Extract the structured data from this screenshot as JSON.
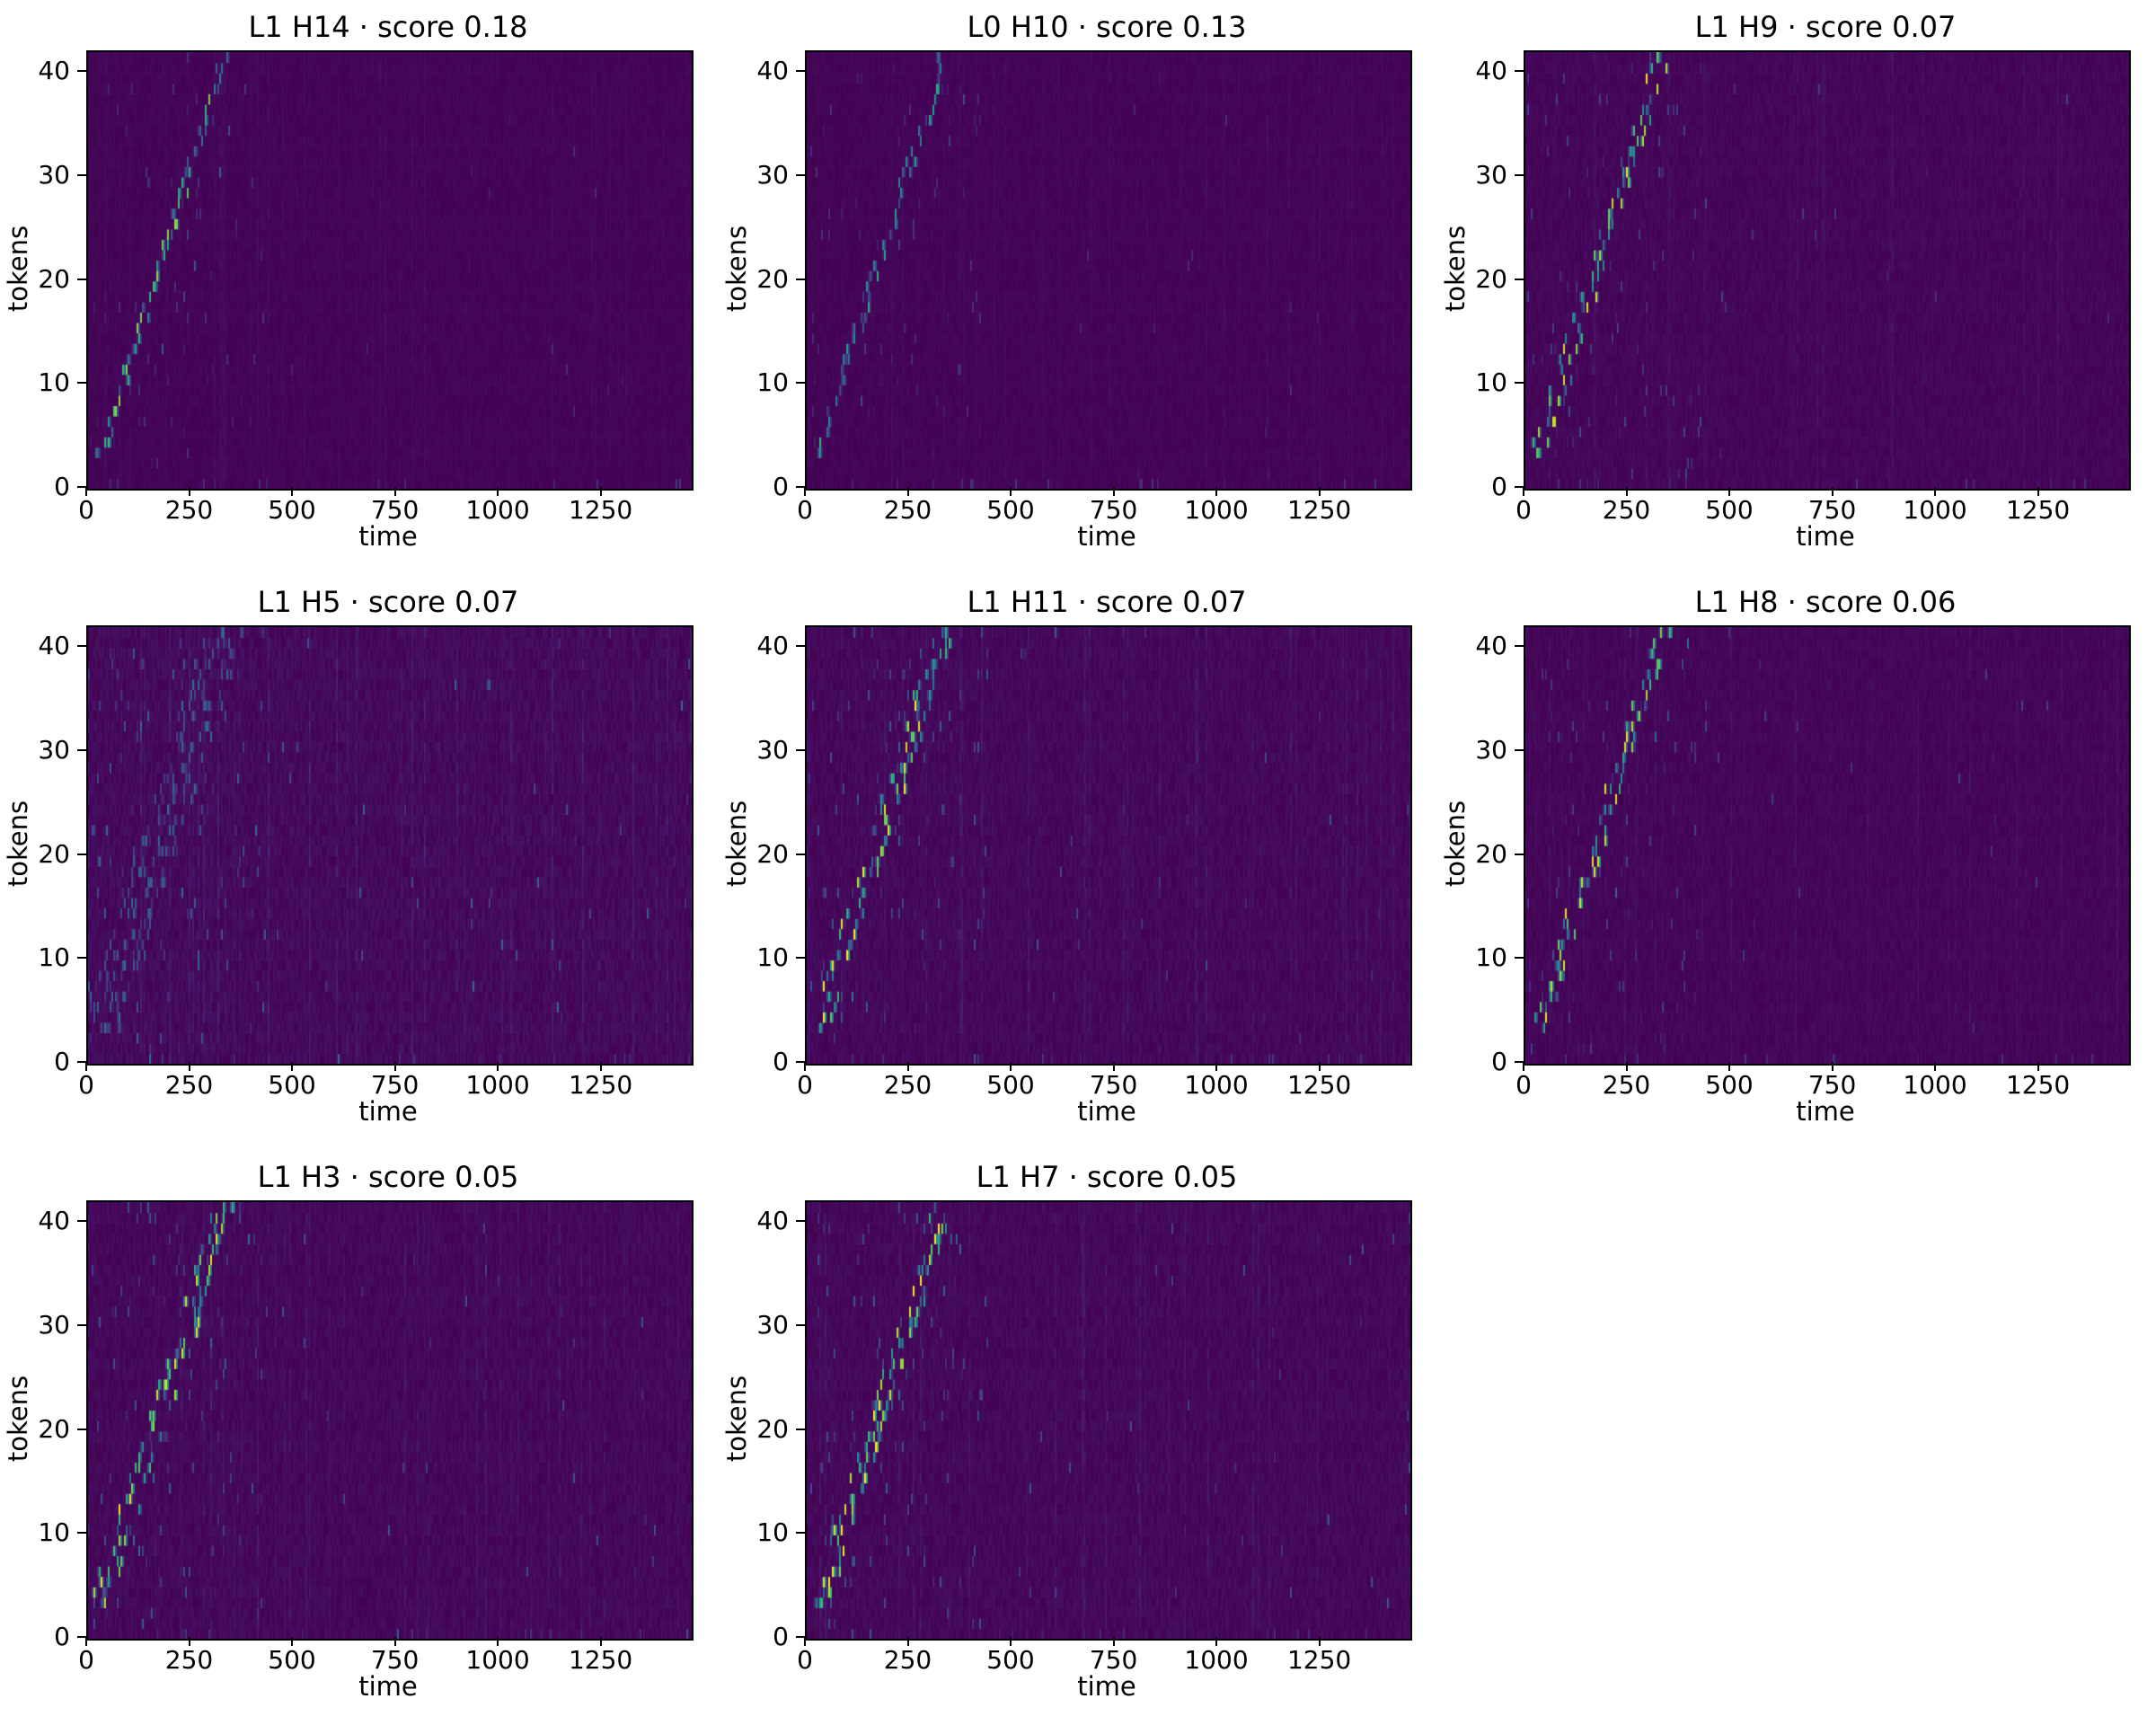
{
  "chart_data": {
    "type": "heatmap",
    "layout": {
      "rows": 3,
      "cols": 3,
      "filled_cells": 8
    },
    "xlabel": "time",
    "ylabel": "tokens",
    "xlim": [
      0,
      1467
    ],
    "ylim": [
      0,
      42
    ],
    "x_ticks": [
      0,
      250,
      500,
      750,
      1000,
      1250
    ],
    "y_ticks": [
      0,
      10,
      20,
      30,
      40
    ],
    "colormap": "viridis",
    "background_color": "#440154",
    "ridge": {
      "description": "bright diagonal alignment path of attention mass: token index rises roughly linearly with time, then nothing after the path ends",
      "time_start": 30,
      "time_end": 330,
      "token_start": 3,
      "token_end": 41
    },
    "panels": [
      {
        "title": "L1 H14 · score 0.18",
        "layer": 1,
        "head": 14,
        "score": 0.18,
        "intensity": 0.72,
        "spread": 1.2,
        "density": 1.4,
        "noise": 0.02,
        "seed": 14
      },
      {
        "title": "L0 H10 · score 0.13",
        "layer": 0,
        "head": 10,
        "score": 0.13,
        "intensity": 0.55,
        "spread": 1.5,
        "density": 1.1,
        "noise": 0.02,
        "seed": 10
      },
      {
        "title": "L1 H9 · score 0.07",
        "layer": 1,
        "head": 9,
        "score": 0.07,
        "intensity": 0.82,
        "spread": 2.2,
        "density": 2.0,
        "noise": 0.03,
        "seed": 9
      },
      {
        "title": "L1 H5 · score 0.07",
        "layer": 1,
        "head": 5,
        "score": 0.07,
        "intensity": 0.3,
        "spread": 5.0,
        "density": 4.0,
        "noise": 0.05,
        "seed": 5
      },
      {
        "title": "L1 H11 · score 0.07",
        "layer": 1,
        "head": 11,
        "score": 0.07,
        "intensity": 0.88,
        "spread": 2.4,
        "density": 2.2,
        "noise": 0.04,
        "seed": 11
      },
      {
        "title": "L1 H8 · score 0.06",
        "layer": 1,
        "head": 8,
        "score": 0.06,
        "intensity": 0.82,
        "spread": 2.0,
        "density": 1.8,
        "noise": 0.03,
        "seed": 8
      },
      {
        "title": "L1 H3 · score 0.05",
        "layer": 1,
        "head": 3,
        "score": 0.05,
        "intensity": 0.82,
        "spread": 2.6,
        "density": 2.0,
        "noise": 0.04,
        "seed": 3
      },
      {
        "title": "L1 H7 · score 0.05",
        "layer": 1,
        "head": 7,
        "score": 0.05,
        "intensity": 0.88,
        "spread": 2.4,
        "density": 2.2,
        "noise": 0.04,
        "seed": 7
      }
    ]
  }
}
